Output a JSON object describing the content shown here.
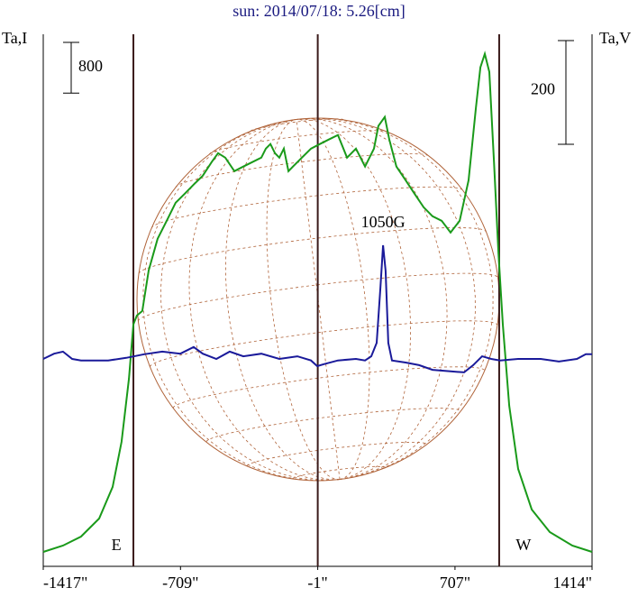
{
  "chart_data": {
    "type": "line",
    "title": "sun: 2014/07/18: 5.26[cm]",
    "left_label": "Ta,I",
    "right_label": "Ta,V",
    "xlim": [
      -1417,
      1414
    ],
    "xticks": [
      {
        "value": -1417,
        "label": "-1417\""
      },
      {
        "value": -709,
        "label": "-709\""
      },
      {
        "value": -1,
        "label": "-1\""
      },
      {
        "value": 707,
        "label": "707\""
      },
      {
        "value": 1414,
        "label": "1414\""
      }
    ],
    "ylim": [
      0,
      8400
    ],
    "y2lim": [
      -400,
      626
    ],
    "scale_bars": [
      {
        "value": 800,
        "axis": "y"
      },
      {
        "value": 200,
        "axis": "y2"
      }
    ],
    "limb_lines": [
      -952,
      -1,
      935
    ],
    "annotations": [
      {
        "text": "1050G",
        "x": 336,
        "y": 219
      },
      {
        "text": "E",
        "x": -1040
      },
      {
        "text": "W",
        "x": 1060
      }
    ],
    "series": [
      {
        "name": "Ta,I",
        "color": "#1a9a1a",
        "axis": "y",
        "x": [
          -1417,
          -1315,
          -1222,
          -1129,
          -1059,
          -1013,
          -975,
          -952,
          -934,
          -906,
          -873,
          -827,
          -780,
          -734,
          -687,
          -641,
          -594,
          -548,
          -515,
          -478,
          -431,
          -385,
          -338,
          -292,
          -269,
          -245,
          -222,
          -199,
          -176,
          -152,
          -129,
          -83,
          -36,
          10,
          56,
          103,
          150,
          196,
          243,
          289,
          312,
          345,
          368,
          405,
          452,
          498,
          545,
          591,
          638,
          684,
          731,
          777,
          815,
          838,
          861,
          884,
          908,
          931,
          954,
          987,
          1033,
          1103,
          1196,
          1312,
          1414
        ],
        "values": [
          228,
          328,
          470,
          755,
          1254,
          1966,
          2963,
          3818,
          3960,
          4031,
          4672,
          5171,
          5456,
          5741,
          5883,
          6026,
          6168,
          6382,
          6524,
          6453,
          6239,
          6311,
          6382,
          6453,
          6595,
          6667,
          6524,
          6453,
          6595,
          6239,
          6311,
          6453,
          6595,
          6667,
          6738,
          6809,
          6453,
          6595,
          6311,
          6595,
          6952,
          7094,
          6738,
          6311,
          6097,
          5883,
          5670,
          5527,
          5456,
          5271,
          5456,
          6097,
          7236,
          7877,
          8091,
          7806,
          6382,
          4957,
          3818,
          2536,
          1538,
          897,
          541,
          328,
          228
        ]
      },
      {
        "name": "Ta,V",
        "color": "#1a1a9a",
        "axis": "y2",
        "x": [
          -1417,
          -1361,
          -1315,
          -1268,
          -1222,
          -1082,
          -989,
          -896,
          -803,
          -710,
          -641,
          -594,
          -524,
          -455,
          -385,
          -292,
          -199,
          -106,
          -36,
          -4,
          33,
          103,
          196,
          243,
          275,
          303,
          322,
          336,
          349,
          363,
          382,
          452,
          522,
          591,
          684,
          754,
          801,
          847,
          894,
          940,
          1033,
          1149,
          1243,
          1336,
          1382,
          1414
        ],
        "values": [
          0,
          10,
          14,
          0,
          -3,
          -3,
          2,
          9,
          14,
          10,
          23,
          10,
          0,
          14,
          5,
          10,
          0,
          5,
          -3,
          -14,
          -10,
          -3,
          0,
          -3,
          5,
          31,
          136,
          219,
          170,
          31,
          -3,
          -7,
          -12,
          -21,
          -24,
          -26,
          -12,
          5,
          0,
          -3,
          0,
          0,
          -5,
          0,
          9,
          9
        ]
      }
    ]
  }
}
